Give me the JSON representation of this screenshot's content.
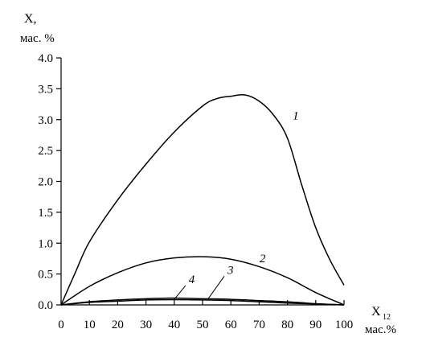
{
  "chart_data": {
    "type": "line",
    "title": "",
    "xlabel": "X",
    "xlabel_subscript": "12",
    "xlabel_unit": "мас.%",
    "ylabel": "X,",
    "ylabel_unit": "мас. %",
    "xlim": [
      0,
      100
    ],
    "ylim": [
      0,
      4.0
    ],
    "x_ticks": [
      "0",
      "10",
      "20",
      "30",
      "40",
      "50",
      "60",
      "70",
      "80",
      "90",
      "100"
    ],
    "y_ticks": [
      "0.0",
      "0.5",
      "1.0",
      "1.5",
      "2.0",
      "2.5",
      "3.0",
      "3.5",
      "4.0"
    ],
    "grid": false,
    "series": [
      {
        "name": "1",
        "x": [
          0,
          5,
          10,
          20,
          30,
          40,
          50,
          55,
          60,
          65,
          70,
          75,
          80,
          85,
          90,
          95,
          100
        ],
        "y": [
          0,
          0.52,
          1.02,
          1.7,
          2.28,
          2.8,
          3.22,
          3.34,
          3.38,
          3.4,
          3.3,
          3.08,
          2.7,
          1.95,
          1.25,
          0.73,
          0.32
        ]
      },
      {
        "name": "2",
        "x": [
          0,
          10,
          20,
          30,
          40,
          50,
          60,
          70,
          80,
          90,
          100
        ],
        "y": [
          0,
          0.3,
          0.52,
          0.68,
          0.76,
          0.78,
          0.74,
          0.62,
          0.44,
          0.2,
          0
        ]
      },
      {
        "name": "3",
        "x": [
          0,
          10,
          20,
          30,
          40,
          50,
          60,
          70,
          80,
          90,
          100
        ],
        "y": [
          0,
          0.05,
          0.08,
          0.1,
          0.11,
          0.1,
          0.09,
          0.07,
          0.05,
          0.02,
          0
        ]
      },
      {
        "name": "4",
        "x": [
          0,
          10,
          20,
          30,
          40,
          50,
          60,
          70,
          80,
          90,
          100
        ],
        "y": [
          0,
          0.04,
          0.06,
          0.08,
          0.085,
          0.08,
          0.07,
          0.05,
          0.03,
          0.015,
          0
        ]
      }
    ],
    "annotations": [
      {
        "text": "1",
        "series": "1",
        "at_x": 81,
        "at_y": 2.82
      },
      {
        "text": "2",
        "series": "2",
        "at_x": 69,
        "at_y": 0.64
      },
      {
        "text": "3",
        "series": "3",
        "at_x": 52,
        "at_y": 0.1
      },
      {
        "text": "4",
        "series": "4",
        "at_x": 40,
        "at_y": 0.09
      }
    ]
  }
}
